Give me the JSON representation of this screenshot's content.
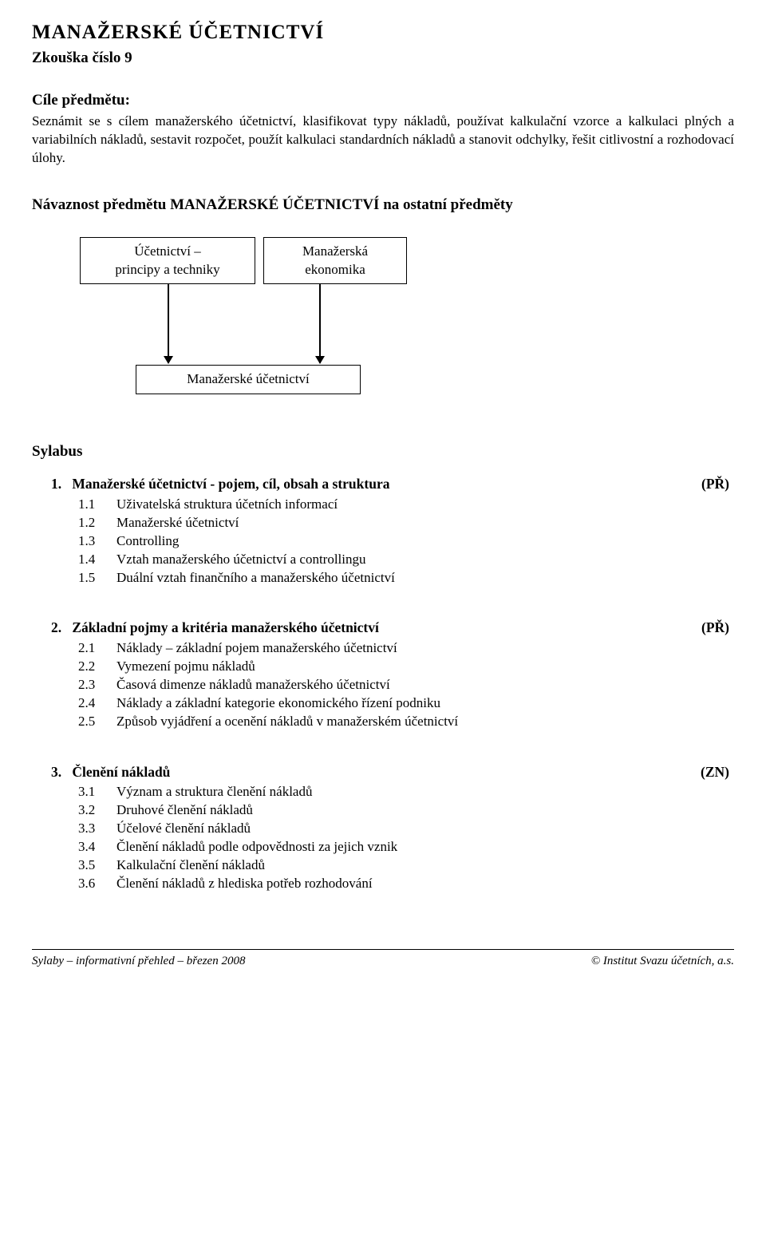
{
  "header": {
    "title": "MANAŽERSKÉ  ÚČETNICTVÍ",
    "subtitle": "Zkouška číslo 9"
  },
  "goals": {
    "heading": "Cíle předmětu:",
    "text": "Seznámit se s cílem manažerského účetnictví, klasifikovat typy nákladů, používat kalkulační vzorce a kalkulaci plných a variabilních nákladů, sestavit rozpočet, použít kalkulaci standardních nákladů a stanovit odchylky, řešit citlivostní a rozhodovací úlohy."
  },
  "nav": {
    "heading": "Návaznost předmětu  MANAŽERSKÉ  ÚČETNICTVÍ  na ostatní předměty",
    "diagram": {
      "node_a_line1": "Účetnictví –",
      "node_a_line2": "principy a techniky",
      "node_b_line1": "Manažerská",
      "node_b_line2": "ekonomika",
      "node_c": "Manažerské účetnictví",
      "border_color": "#000000",
      "background_color": "#ffffff"
    }
  },
  "sylabus": {
    "heading": "Sylabus",
    "sections": [
      {
        "num": "1.",
        "title": "Manažerské účetnictví - pojem, cíl, obsah a struktura",
        "tag": "(PŘ)",
        "items": [
          {
            "n": "1.1",
            "t": "Uživatelská struktura účetních informací"
          },
          {
            "n": "1.2",
            "t": "Manažerské  účetnictví"
          },
          {
            "n": "1.3",
            "t": "Controlling"
          },
          {
            "n": "1.4",
            "t": "Vztah manažerského účetnictví a controllingu"
          },
          {
            "n": "1.5",
            "t": "Duální vztah finančního a manažerského účetnictví"
          }
        ]
      },
      {
        "num": "2.",
        "title": "Základní  pojmy a kritéria  manažerského účetnictví",
        "tag": "(PŘ)",
        "items": [
          {
            "n": "2.1",
            "t": "Náklady – základní pojem manažerského účetnictví"
          },
          {
            "n": "2.2",
            "t": "Vymezení pojmu nákladů"
          },
          {
            "n": "2.3",
            "t": "Časová dimenze nákladů manažerského účetnictví"
          },
          {
            "n": "2.4",
            "t": "Náklady a základní kategorie ekonomického řízení podniku"
          },
          {
            "n": "2.5",
            "t": "Způsob vyjádření a ocenění nákladů v manažerském účetnictví"
          }
        ]
      },
      {
        "num": "3.",
        "title": "Členění nákladů",
        "tag": "(ZN)",
        "items": [
          {
            "n": "3.1",
            "t": "Význam a struktura členění nákladů"
          },
          {
            "n": "3.2",
            "t": "Druhové členění nákladů"
          },
          {
            "n": "3.3",
            "t": "Účelové členění nákladů"
          },
          {
            "n": "3.4",
            "t": "Členění nákladů podle odpovědnosti za jejich vznik"
          },
          {
            "n": "3.5",
            "t": "Kalkulační členění nákladů"
          },
          {
            "n": "3.6",
            "t": "Členění nákladů z hlediska potřeb rozhodování"
          }
        ]
      }
    ]
  },
  "footer": {
    "left": "Sylaby – informativní přehled – březen 2008",
    "right": "© Institut Svazu účetních, a.s."
  }
}
